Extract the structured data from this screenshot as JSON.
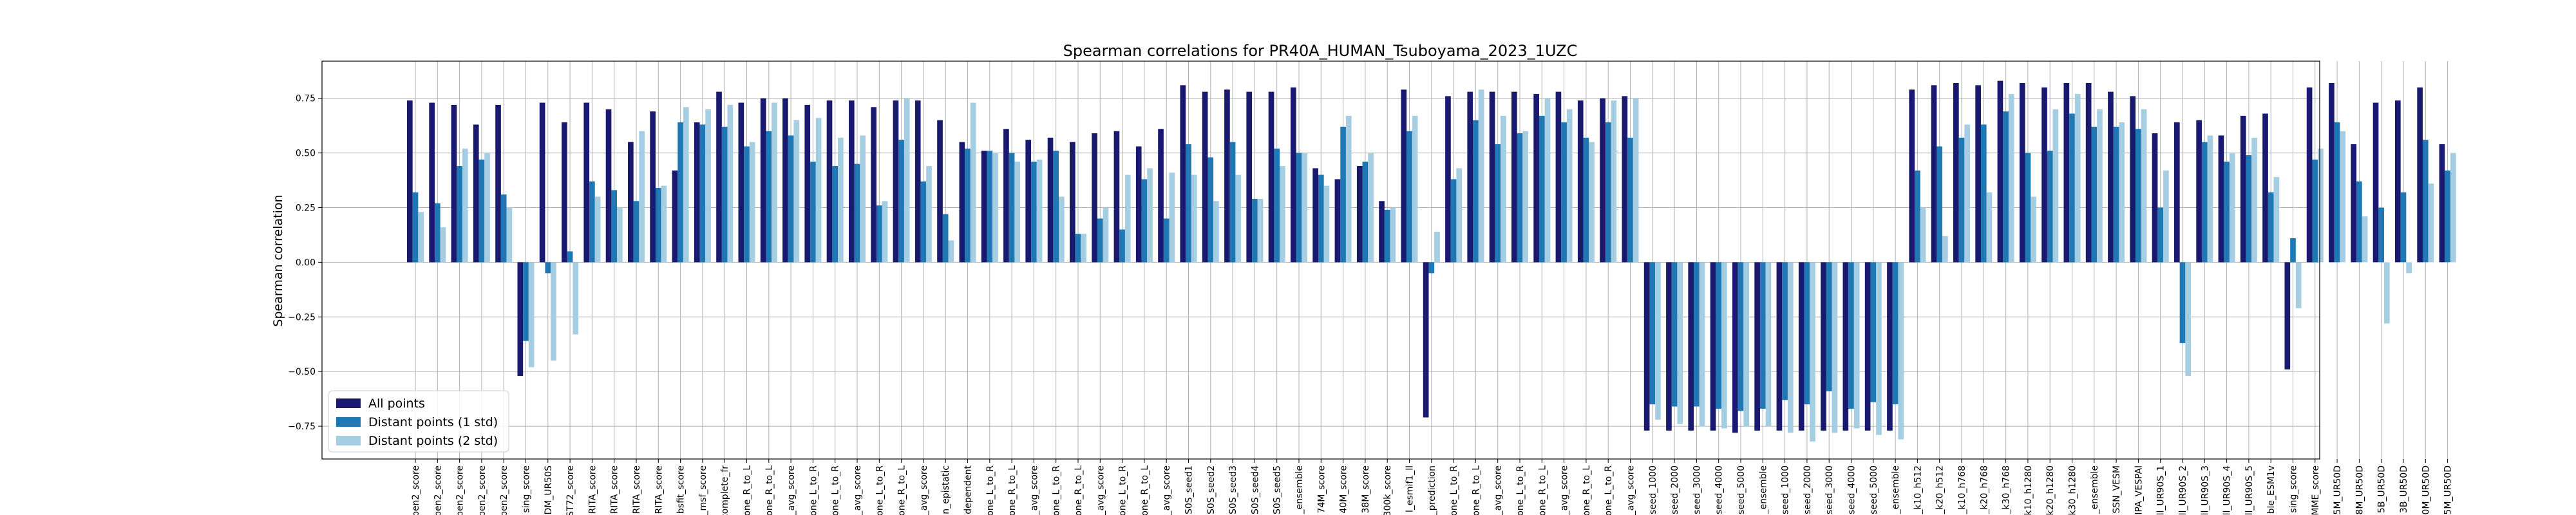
{
  "chart_data": {
    "type": "bar",
    "title": "Spearman correlations for PR40A_HUMAN_Tsuboyama_2023_1UZC",
    "xlabel": "",
    "ylabel": "Spearman correlation",
    "ylim": [
      -0.9,
      0.92
    ],
    "yticks": [
      "−0.75",
      "−0.50",
      "−0.25",
      "0.00",
      "0.25",
      "0.50",
      "0.75"
    ],
    "grid": true,
    "legend_position": "lower-left",
    "colors": {
      "All points": "#191970",
      "Distant points (1 std)": "#1f78b4",
      "Distant points (2 std)": "#a6cee3"
    },
    "categories": [
      "pen2_score",
      "pen2_score",
      "pen2_score",
      "pen2_score",
      "pen2_score",
      "sing_score",
      "DM_UR50S",
      "ST72_score",
      "RITA_score",
      "RITA_score",
      "RITA_score",
      "RITA_score",
      "bsfit_score",
      "_msf_score",
      "lf_complete_fr",
      "one_R_to_L",
      "one_R_to_L",
      "_avg_score",
      "one_L_to_R",
      "one_L_to_R",
      "_avg_score",
      "one_L_to_R",
      "one_R_to_L",
      "_avg_score",
      "n_epistatic",
      "dependent",
      "one_L_to_R",
      "one_R_to_L",
      "_avg_score",
      "one_L_to_R",
      "one_R_to_L",
      "_avg_score",
      "one_L_to_R",
      "one_R_to_L",
      "_avg_score",
      "S0S_seed1",
      "S0S_seed2",
      "S0S_seed3",
      "S0S_seed4",
      "S0S_seed5",
      "_ensemble",
      "74M_score",
      "40M_score",
      "38M_score",
      "300k_score",
      "l_esmif1_ll",
      "_prediction",
      "one_L_to_R",
      "one_R_to_L",
      "_avg_score",
      "one_L_to_R",
      "one_R_to_L",
      "_avg_score",
      "one_R_to_L",
      "one_L_to_R",
      "_avg_score",
      "seed_1000",
      "seed_2000",
      "seed_3000",
      "seed_4000",
      "seed_5000",
      "_ensemble",
      "seed_1000",
      "seed_2000",
      "seed_3000",
      "seed_4000",
      "seed_5000",
      "_ensemble",
      "_k10_h512",
      "_k20_h512",
      "_k10_h768",
      "_k20_h768",
      "_k30_h768",
      "_k10_h1280",
      "_k20_h1280",
      "_k30_h1280",
      "_ensemble",
      "SSN_VESM",
      "IPA_VESPAl",
      "ll_UR90S_1",
      "ll_UR90S_2",
      "ll_UR90S_3",
      "ll_UR90S_4",
      "ll_UR90S_5",
      "ble_ESM1v",
      "sing_score",
      "MME_score",
      "5M_UR50D",
      "8M_UR50D",
      "5B_UR50D",
      "3B_UR50D",
      "0M_UR50D",
      "5M_UR50D"
    ],
    "series": [
      {
        "name": "All points",
        "values": [
          0.74,
          0.73,
          0.72,
          0.63,
          0.72,
          -0.52,
          0.73,
          0.64,
          0.73,
          0.7,
          0.55,
          0.69,
          0.42,
          0.64,
          0.78,
          0.73,
          0.75,
          0.75,
          0.72,
          0.74,
          0.74,
          0.71,
          0.74,
          0.74,
          0.65,
          0.55,
          0.51,
          0.61,
          0.56,
          0.57,
          0.55,
          0.59,
          0.6,
          0.53,
          0.61,
          0.81,
          0.78,
          0.79,
          0.78,
          0.78,
          0.8,
          0.43,
          0.38,
          0.44,
          0.28,
          0.79,
          -0.71,
          0.76,
          0.78,
          0.78,
          0.78,
          0.77,
          0.78,
          0.74,
          0.75,
          0.76,
          -0.77,
          -0.77,
          -0.77,
          -0.77,
          -0.78,
          -0.77,
          -0.77,
          -0.77,
          -0.77,
          -0.77,
          -0.77,
          -0.77,
          0.79,
          0.81,
          0.82,
          0.81,
          0.83,
          0.82,
          0.8,
          0.82,
          0.82,
          0.78,
          0.76,
          0.59,
          0.64,
          0.65,
          0.58,
          0.67,
          0.68,
          -0.49,
          0.8,
          0.82,
          0.54,
          0.73,
          0.74,
          0.8,
          0.54
        ]
      },
      {
        "name": "Distant points (1 std)",
        "values": [
          0.32,
          0.27,
          0.44,
          0.47,
          0.31,
          -0.36,
          -0.05,
          0.05,
          0.37,
          0.33,
          0.28,
          0.34,
          0.64,
          0.63,
          0.62,
          0.53,
          0.6,
          0.58,
          0.46,
          0.44,
          0.45,
          0.26,
          0.56,
          0.37,
          0.22,
          0.52,
          0.51,
          0.5,
          0.46,
          0.51,
          0.13,
          0.2,
          0.15,
          0.38,
          0.2,
          0.54,
          0.48,
          0.55,
          0.29,
          0.52,
          0.5,
          0.4,
          0.62,
          0.46,
          0.24,
          0.6,
          -0.05,
          0.38,
          0.65,
          0.54,
          0.59,
          0.67,
          0.64,
          0.57,
          0.64,
          0.57,
          -0.65,
          -0.66,
          -0.66,
          -0.67,
          -0.68,
          -0.67,
          -0.63,
          -0.65,
          -0.59,
          -0.67,
          -0.64,
          -0.65,
          0.42,
          0.53,
          0.57,
          0.63,
          0.69,
          0.5,
          0.51,
          0.68,
          0.62,
          0.62,
          0.61,
          0.25,
          -0.37,
          0.55,
          0.46,
          0.49,
          0.32,
          0.11,
          0.47,
          0.64,
          0.37,
          0.25,
          0.32,
          0.56,
          0.42
        ]
      },
      {
        "name": "Distant points (2 std)",
        "values": [
          0.23,
          0.16,
          0.52,
          0.5,
          0.25,
          -0.48,
          -0.45,
          -0.33,
          0.3,
          0.25,
          0.6,
          0.35,
          0.71,
          0.7,
          0.72,
          0.55,
          0.73,
          0.65,
          0.66,
          0.57,
          0.58,
          0.28,
          0.75,
          0.44,
          0.1,
          0.73,
          0.5,
          0.46,
          0.47,
          0.3,
          0.13,
          0.25,
          0.4,
          0.43,
          0.41,
          0.4,
          0.28,
          0.4,
          0.29,
          0.44,
          0.5,
          0.35,
          0.67,
          0.5,
          0.25,
          0.67,
          0.14,
          0.43,
          0.79,
          0.67,
          0.6,
          0.75,
          0.7,
          0.55,
          0.74,
          0.75,
          -0.72,
          -0.74,
          -0.75,
          -0.76,
          -0.75,
          -0.75,
          -0.78,
          -0.82,
          -0.78,
          -0.76,
          -0.79,
          -0.81,
          0.25,
          0.12,
          0.63,
          0.32,
          0.77,
          0.3,
          0.7,
          0.77,
          0.7,
          0.64,
          0.7,
          0.42,
          -0.52,
          0.58,
          0.5,
          0.57,
          0.39,
          -0.21,
          0.52,
          0.6,
          0.21,
          -0.28,
          -0.05,
          0.36,
          0.5
        ]
      }
    ]
  }
}
